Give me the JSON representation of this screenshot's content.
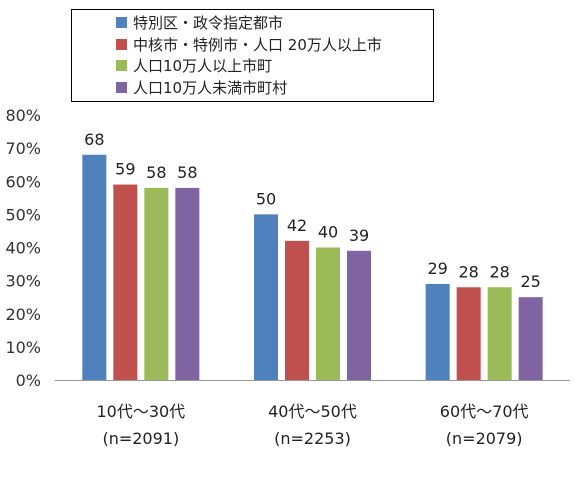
{
  "chart_data": {
    "type": "bar",
    "categories": [
      "10代～30代",
      "40代～50代",
      "60代～70代"
    ],
    "category_notes": [
      "(n=2091)",
      "(n=2253)",
      "(n=2079)"
    ],
    "series": [
      {
        "name": "特別区・政令指定都市",
        "color": "#4f81bd",
        "values": [
          68,
          50,
          29
        ]
      },
      {
        "name": "中核市・特例市・人口 20万人以上市",
        "color": "#c0504d",
        "values": [
          59,
          42,
          28
        ]
      },
      {
        "name": "人口10万人以上市町",
        "color": "#9bbb59",
        "values": [
          58,
          40,
          28
        ]
      },
      {
        "name": "人口10万人未満市町村",
        "color": "#8064a2",
        "values": [
          58,
          39,
          25
        ]
      }
    ],
    "yticks": [
      "0%",
      "10%",
      "20%",
      "30%",
      "40%",
      "50%",
      "60%",
      "70%",
      "80%"
    ],
    "ylim": [
      0,
      80
    ],
    "grid": false,
    "legend_position": "top"
  }
}
